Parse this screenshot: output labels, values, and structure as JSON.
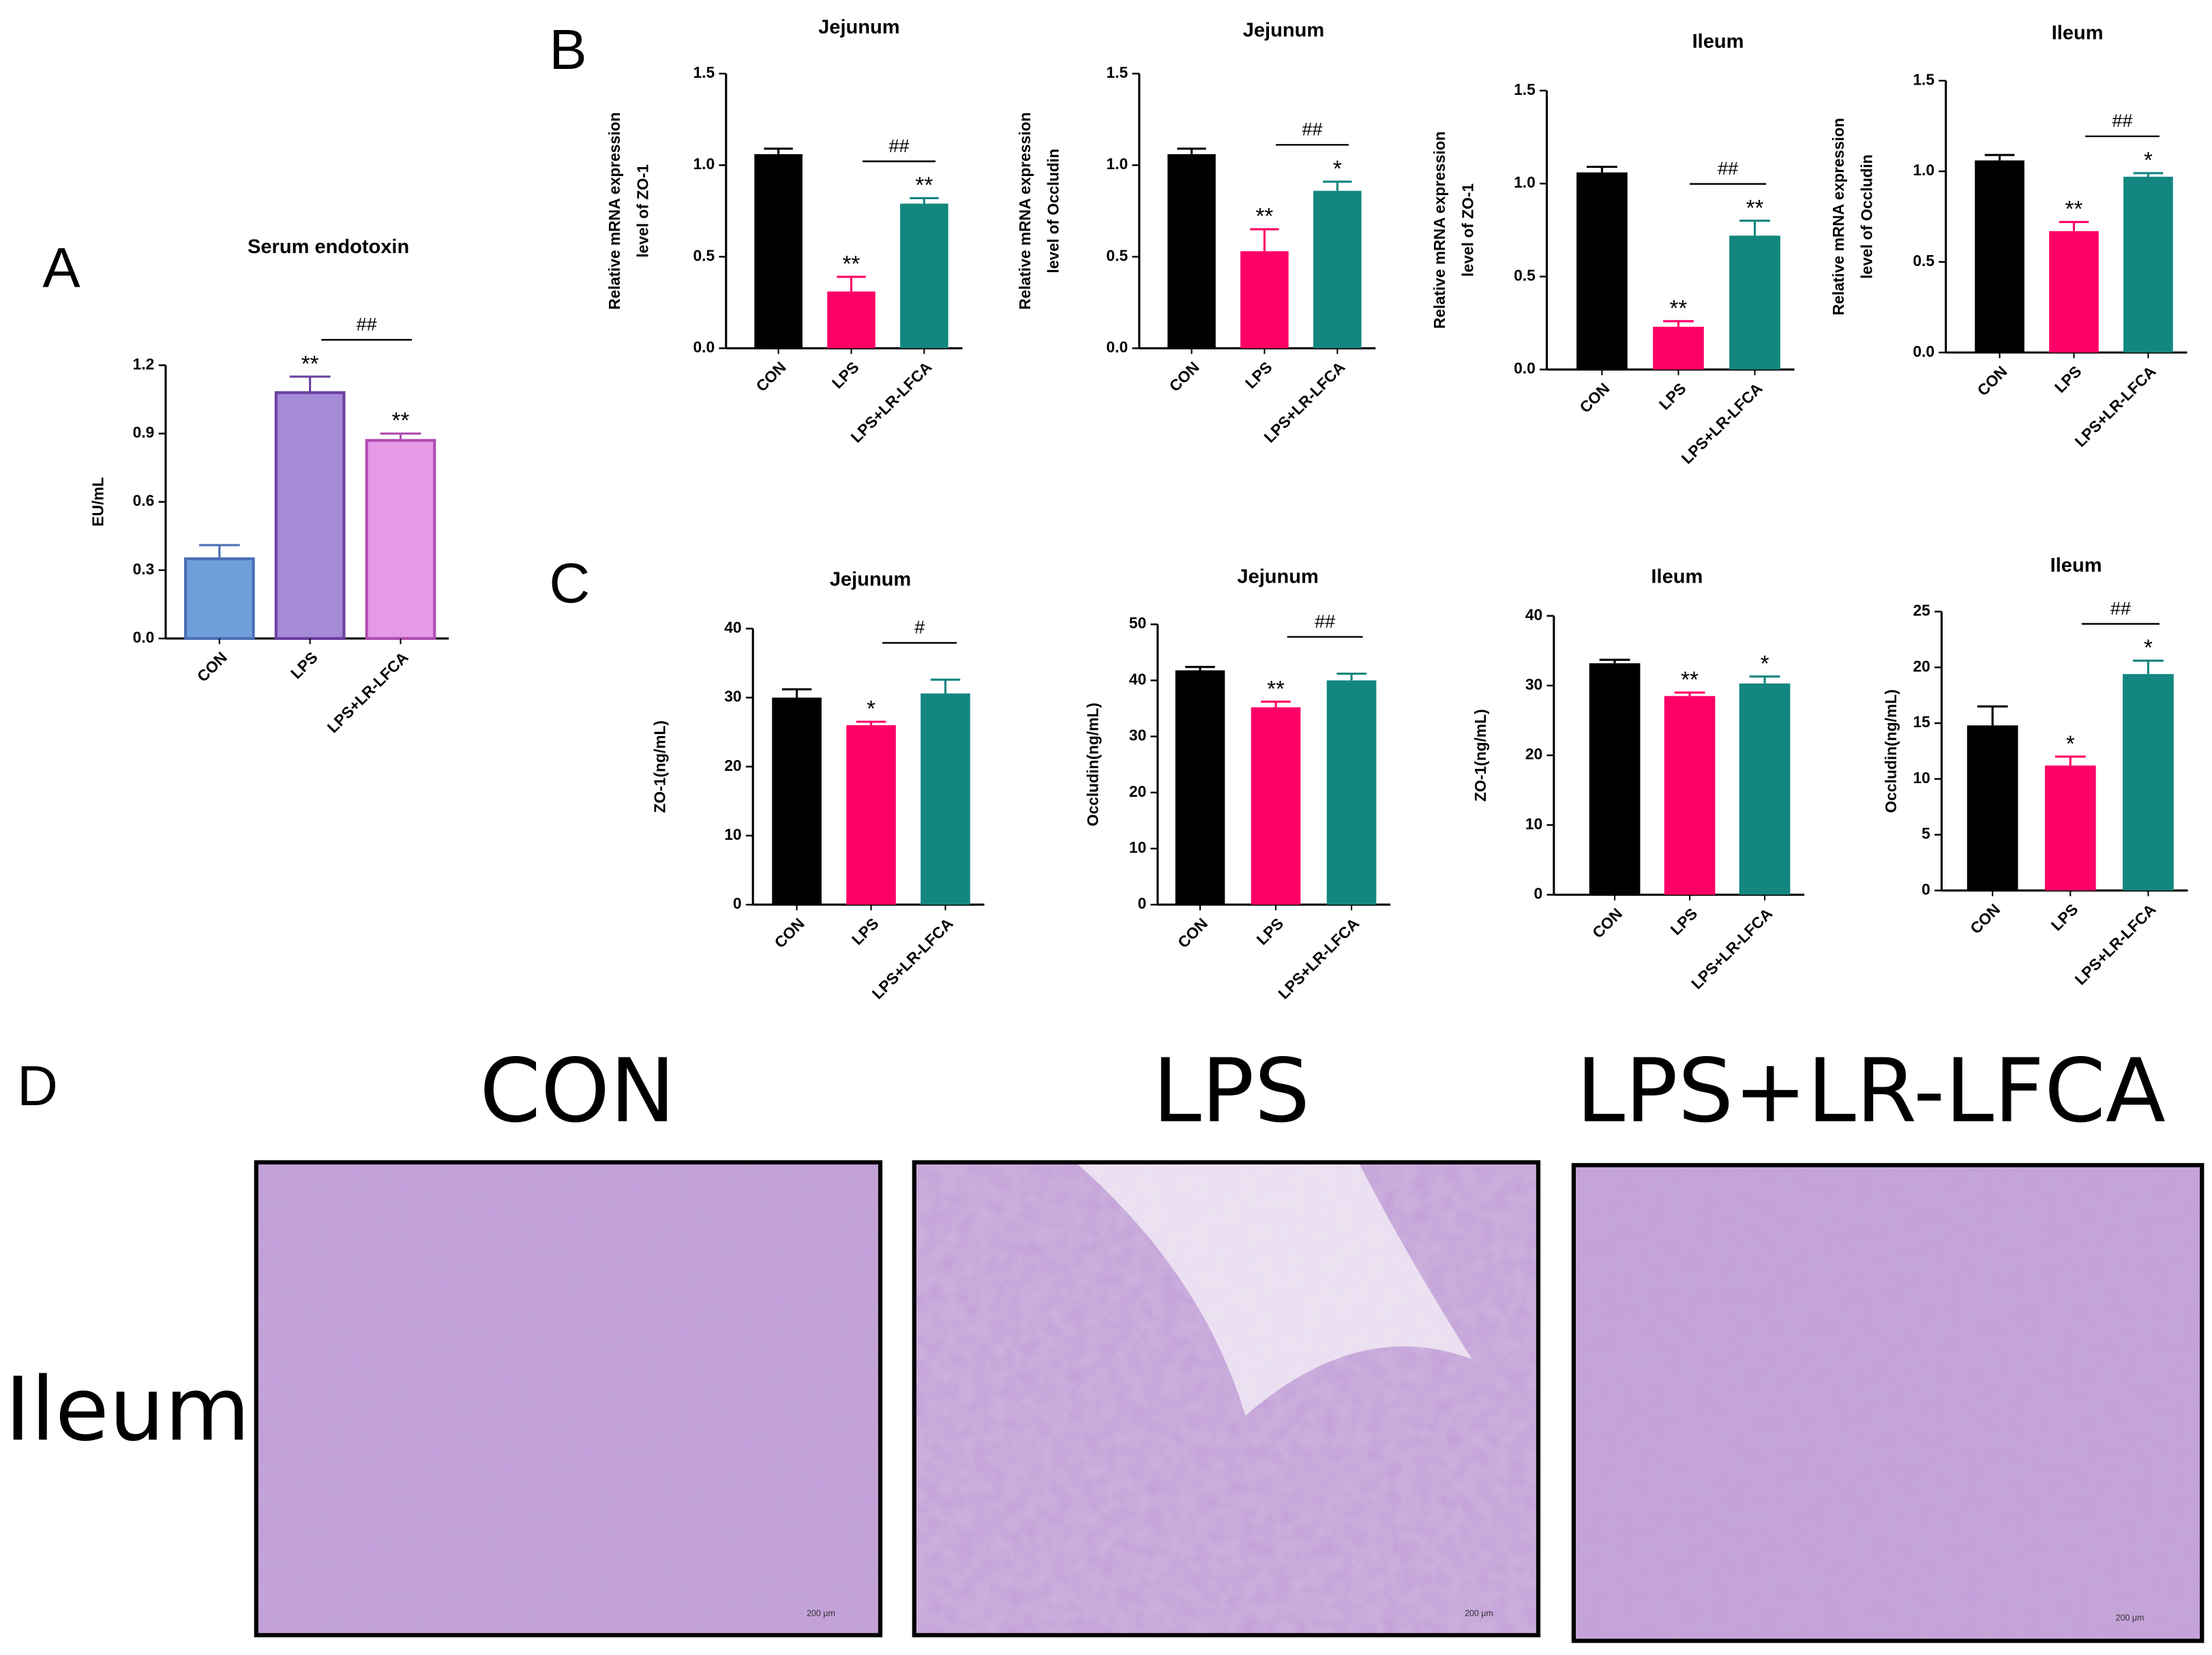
{
  "panel_labels": [
    "A",
    "B",
    "C",
    "D"
  ],
  "chart_data": [
    {
      "type": "bar",
      "title": "Serum endotoxin",
      "y_label": [
        "EU/mL"
      ],
      "categories": [
        "CON",
        "LPS",
        "LPS+LR-LFCA"
      ],
      "values": [
        0.35,
        1.08,
        0.87
      ],
      "errors": [
        0.06,
        0.07,
        0.03
      ],
      "colors": [
        "#6f9fd8",
        "#a58ad6",
        "#e699e6"
      ],
      "edge_colors": [
        "#4a6fb5",
        "#6b3fa0",
        "#b04db0"
      ],
      "annotations": [
        null,
        "**",
        "**"
      ],
      "bracket_label": "##",
      "ylim": [
        0,
        1.2
      ],
      "yticks": [
        {
          "value": 0,
          "label": "0.0"
        },
        0.3,
        0.6,
        0.9,
        1.2
      ]
    },
    {
      "type": "bar",
      "title": "Jejunum",
      "y_label": [
        "Relative mRNA expression",
        "level of ZO-1"
      ],
      "categories": [
        "CON",
        "LPS",
        "LPS+LR-LFCA"
      ],
      "values": [
        1.06,
        0.31,
        0.79
      ],
      "errors": [
        0.03,
        0.08,
        0.03
      ],
      "colors": [
        "#000000",
        "#ff0066",
        "#138680"
      ],
      "annotations": [
        null,
        "**",
        "**"
      ],
      "bracket_label": "##",
      "ylim": [
        0,
        1.5
      ],
      "yticks": [
        {
          "value": 0,
          "label": "0.0"
        },
        0.5,
        {
          "value": 1,
          "label": "1.0"
        },
        1.5
      ]
    },
    {
      "type": "bar",
      "title": "Jejunum",
      "y_label": [
        "Relative mRNA expression",
        "level of Occludin"
      ],
      "categories": [
        "CON",
        "LPS",
        "LPS+LR-LFCA"
      ],
      "values": [
        1.06,
        0.53,
        0.86
      ],
      "errors": [
        0.03,
        0.12,
        0.05
      ],
      "colors": [
        "#000000",
        "#ff0066",
        "#138680"
      ],
      "annotations": [
        null,
        "**",
        "*"
      ],
      "bracket_label": "##",
      "ylim": [
        0,
        1.5
      ],
      "yticks": [
        {
          "value": 0,
          "label": "0.0"
        },
        0.5,
        {
          "value": 1,
          "label": "1.0"
        },
        1.5
      ]
    },
    {
      "type": "bar",
      "title": "Ileum",
      "y_label": [
        "Relative mRNA expression",
        "level of ZO-1"
      ],
      "categories": [
        "CON",
        "LPS",
        "LPS+LR-LFCA"
      ],
      "values": [
        1.06,
        0.23,
        0.72
      ],
      "errors": [
        0.03,
        0.03,
        0.08
      ],
      "colors": [
        "#000000",
        "#ff0066",
        "#138680"
      ],
      "annotations": [
        null,
        "**",
        "**"
      ],
      "bracket_label": "##",
      "ylim": [
        0,
        1.5
      ],
      "yticks": [
        {
          "value": 0,
          "label": "0.0"
        },
        0.5,
        {
          "value": 1,
          "label": "1.0"
        },
        1.5
      ]
    },
    {
      "type": "bar",
      "title": "Ileum",
      "y_label": [
        "Relative mRNA expression",
        "level of Occludin"
      ],
      "categories": [
        "CON",
        "LPS",
        "LPS+LR-LFCA"
      ],
      "values": [
        1.06,
        0.67,
        0.97
      ],
      "errors": [
        0.03,
        0.05,
        0.02
      ],
      "colors": [
        "#000000",
        "#ff0066",
        "#138680"
      ],
      "annotations": [
        null,
        "**",
        "*"
      ],
      "bracket_label": "##",
      "ylim": [
        0,
        1.5
      ],
      "yticks": [
        {
          "value": 0,
          "label": "0.0"
        },
        0.5,
        {
          "value": 1,
          "label": "1.0"
        },
        1.5
      ]
    },
    {
      "type": "bar",
      "title": "Jejunum",
      "y_label": [
        "ZO-1(ng/mL)"
      ],
      "categories": [
        "CON",
        "LPS",
        "LPS+LR-LFCA"
      ],
      "values": [
        30,
        26,
        30.6
      ],
      "errors": [
        1.2,
        0.5,
        2
      ],
      "colors": [
        "#000000",
        "#ff0066",
        "#138680"
      ],
      "annotations": [
        null,
        "*",
        null
      ],
      "bracket_label": "#",
      "ylim": [
        0,
        40
      ],
      "yticks": [
        0,
        10,
        20,
        30,
        40
      ]
    },
    {
      "type": "bar",
      "title": "Jejunum",
      "y_label": [
        "Occludin(ng/mL)"
      ],
      "categories": [
        "CON",
        "LPS",
        "LPS+LR-LFCA"
      ],
      "values": [
        41.8,
        35.2,
        40
      ],
      "errors": [
        0.6,
        1,
        1.2
      ],
      "colors": [
        "#000000",
        "#ff0066",
        "#138680"
      ],
      "annotations": [
        null,
        "**",
        null
      ],
      "bracket_label": "##",
      "ylim": [
        0,
        50
      ],
      "yticks": [
        0,
        10,
        20,
        30,
        40,
        50
      ]
    },
    {
      "type": "bar",
      "title": "Ileum",
      "y_label": [
        "ZO-1(ng/mL)"
      ],
      "categories": [
        "CON",
        "LPS",
        "LPS+LR-LFCA"
      ],
      "values": [
        33.2,
        28.5,
        30.3
      ],
      "errors": [
        0.5,
        0.5,
        1
      ],
      "colors": [
        "#000000",
        "#ff0066",
        "#138680"
      ],
      "annotations": [
        null,
        "**",
        "*"
      ],
      "ylim": [
        0,
        40
      ],
      "yticks": [
        0,
        10,
        20,
        30,
        40
      ]
    },
    {
      "type": "bar",
      "title": "Ileum",
      "y_label": [
        "Occludin(ng/mL)"
      ],
      "categories": [
        "CON",
        "LPS",
        "LPS+LR-LFCA"
      ],
      "values": [
        14.8,
        11.2,
        19.4
      ],
      "errors": [
        1.7,
        0.8,
        1.2
      ],
      "colors": [
        "#000000",
        "#ff0066",
        "#138680"
      ],
      "annotations": [
        null,
        "*",
        "*"
      ],
      "bracket_label": "##",
      "ylim": [
        0,
        25
      ],
      "yticks": [
        0,
        5,
        10,
        15,
        20,
        25
      ]
    }
  ],
  "histology": {
    "titles": [
      "CON",
      "LPS",
      "LPS+LR-LFCA"
    ],
    "row_label": "Ileum",
    "scale_bar_label": "200 μm"
  }
}
